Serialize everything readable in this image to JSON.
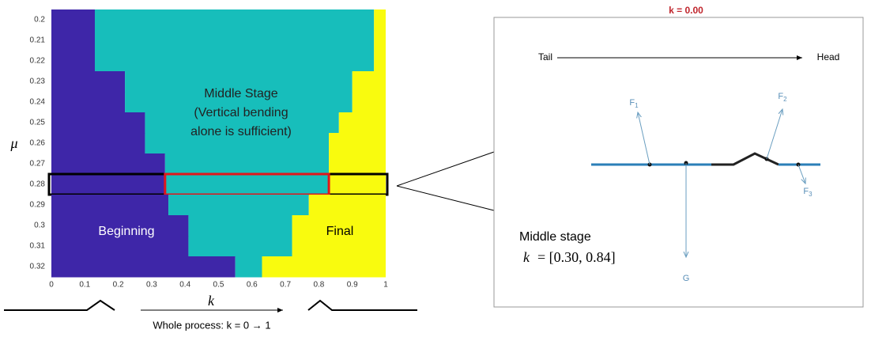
{
  "chart_data": {
    "type": "region-map",
    "x_label": "k",
    "y_label": "μ",
    "xlim": [
      0,
      1
    ],
    "ylim": [
      0.195,
      0.325
    ],
    "xticks": [
      0,
      0.1,
      0.2,
      0.3,
      0.4,
      0.5,
      0.6,
      0.7,
      0.8,
      0.9,
      1
    ],
    "yticks": [
      0.2,
      0.21,
      0.22,
      0.23,
      0.24,
      0.25,
      0.26,
      0.27,
      0.28,
      0.29,
      0.3,
      0.31,
      0.32
    ],
    "middle_start": [
      0.13,
      0.13,
      0.13,
      0.22,
      0.22,
      0.28,
      0.28,
      0.34,
      0.34,
      0.35,
      0.41,
      0.41,
      0.55
    ],
    "final_start": [
      0.965,
      0.965,
      0.965,
      0.9,
      0.9,
      0.86,
      0.83,
      0.83,
      0.83,
      0.77,
      0.72,
      0.72,
      0.63
    ],
    "colors": {
      "beginning": "#3e26a8",
      "middle": "#17bebb",
      "final": "#f9fb0e"
    },
    "highlight_row": 8,
    "region_labels": {
      "beginning": "Beginning",
      "middle": [
        "Middle Stage",
        "(Vertical bending",
        "alone is sufficient)"
      ],
      "final": "Final"
    },
    "caption": "Whole process: k = 0 → 1"
  },
  "panel": {
    "title": "k = 0.00",
    "tail": "Tail",
    "head": "Head",
    "forces": [
      {
        "letter": "F",
        "sub": "1"
      },
      {
        "letter": "F",
        "sub": "2"
      },
      {
        "letter": "F",
        "sub": "3"
      },
      {
        "letter": "G",
        "sub": ""
      }
    ],
    "stage": "Middle stage",
    "k_symbol": "k",
    "k_range": "= [0.30, 0.84]"
  }
}
